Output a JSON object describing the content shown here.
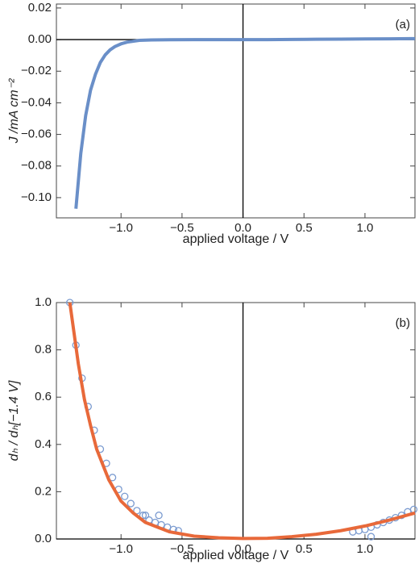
{
  "chart_data": [
    {
      "type": "line",
      "annotation": "(a)",
      "xlabel": "applied voltage / V",
      "ylabel": "J /mA cm⁻²",
      "xlim": [
        -1.53,
        1.41
      ],
      "ylim": [
        -0.1128,
        0.0225
      ],
      "xticks": [
        {
          "value": -1,
          "label": "−1.0"
        },
        {
          "value": -0.5,
          "label": "−0.5"
        },
        {
          "value": 0,
          "label": "0.0"
        },
        0.5,
        {
          "value": 1,
          "label": "1.0"
        }
      ],
      "yticks": [
        0.02,
        {
          "value": 0,
          "label": "0.00"
        },
        {
          "value": -0.02,
          "label": "−0.02"
        },
        {
          "value": -0.04,
          "label": "−0.04"
        },
        {
          "value": -0.06,
          "label": "−0.06"
        },
        {
          "value": -0.08,
          "label": "−0.08"
        },
        {
          "value": -0.1,
          "label": "−0.10"
        }
      ],
      "series": [
        {
          "type": "line",
          "color": "#6a8fc8",
          "x": [
            -1.37,
            -1.33,
            -1.29,
            -1.25,
            -1.21,
            -1.17,
            -1.13,
            -1.09,
            -1.05,
            -1.0,
            -0.95,
            -0.85,
            -0.75,
            -0.6,
            -0.4,
            -0.2,
            0,
            0.2,
            0.4,
            0.6,
            0.8,
            1.0,
            1.2,
            1.41
          ],
          "values": [
            -0.107,
            -0.072,
            -0.048,
            -0.032,
            -0.022,
            -0.0145,
            -0.0097,
            -0.0065,
            -0.0044,
            -0.0027,
            -0.0016,
            -0.0005,
            -0.0002,
            -0.0001,
            0,
            0,
            0,
            0,
            0.0001,
            0.0002,
            0.0003,
            0.0004,
            0.0005,
            0.0006
          ]
        }
      ]
    },
    {
      "type": "scatter",
      "annotation": "(b)",
      "xlabel": "applied voltage / V",
      "ylabel": "dₕ / dₕ[−1.4 V]",
      "xlim": [
        -1.53,
        1.41
      ],
      "ylim": [
        0,
        1
      ],
      "xticks": [
        {
          "value": -1,
          "label": "−1.0"
        },
        {
          "value": -0.5,
          "label": "−0.5"
        },
        {
          "value": 0,
          "label": "0.0"
        },
        0.5,
        {
          "value": 1,
          "label": "1.0"
        }
      ],
      "yticks": [
        {
          "value": 0,
          "label": "0.0"
        },
        0.2,
        0.4,
        0.6,
        0.8,
        {
          "value": 1,
          "label": "1.0"
        }
      ],
      "series": [
        {
          "type": "scatter",
          "color": "#7b9bd0",
          "x": [
            -1.42,
            -1.37,
            -1.32,
            -1.27,
            -1.22,
            -1.17,
            -1.12,
            -1.07,
            -1.02,
            -0.97,
            -0.92,
            -0.87,
            -0.82,
            -0.77,
            -0.72,
            -0.67,
            -0.62,
            -0.57,
            -0.53,
            -0.8,
            -0.69,
            0.9,
            0.95,
            1.0,
            1.05,
            1.1,
            1.15,
            1.2,
            1.25,
            1.3,
            1.35,
            1.4,
            1.05
          ],
          "values": [
            1.0,
            0.82,
            0.68,
            0.56,
            0.46,
            0.38,
            0.32,
            0.26,
            0.21,
            0.18,
            0.15,
            0.12,
            0.1,
            0.08,
            0.07,
            0.06,
            0.05,
            0.04,
            0.035,
            0.1,
            0.1,
            0.03,
            0.035,
            0.04,
            0.05,
            0.06,
            0.07,
            0.08,
            0.09,
            0.1,
            0.115,
            0.125,
            0.01
          ]
        },
        {
          "type": "line",
          "color": "#e8693a",
          "x": [
            -1.42,
            -1.35,
            -1.3,
            -1.25,
            -1.2,
            -1.1,
            -1.0,
            -0.9,
            -0.8,
            -0.6,
            -0.4,
            -0.2,
            0,
            0.2,
            0.4,
            0.6,
            0.8,
            1.0,
            1.2,
            1.41
          ],
          "values": [
            1.0,
            0.74,
            0.59,
            0.48,
            0.38,
            0.25,
            0.16,
            0.11,
            0.07,
            0.03,
            0.012,
            0.005,
            0.002,
            0.003,
            0.01,
            0.02,
            0.035,
            0.055,
            0.08,
            0.11
          ]
        }
      ]
    }
  ]
}
